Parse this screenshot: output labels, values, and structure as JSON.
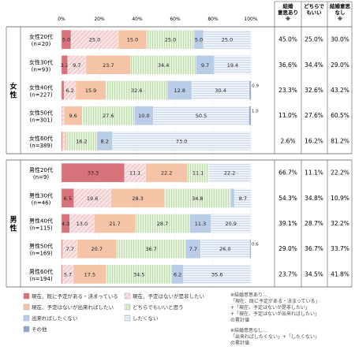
{
  "header": {
    "kekkon_ari": "結婚\n意思あり\n※",
    "dochira": "どちらで\nもいい",
    "kekkon_nashi": "結婚意思\nなし\n※"
  },
  "sections": [
    "女性",
    "男性"
  ],
  "legend": [
    {
      "label": "現在、既に予定がある・決まっている",
      "color": "#d7727a",
      "pattern": "solid"
    },
    {
      "label": "現在、予定はないが是非したい",
      "color": "#e8b4b8",
      "pattern": "hatch"
    },
    {
      "label": "現在、予定はないが出来ればしたい",
      "color": "#f5c4a6",
      "pattern": "solid"
    },
    {
      "label": "どちらでもいいと思う",
      "color": "#d6ecc8",
      "pattern": "vlines"
    },
    {
      "label": "出来ればしたくない",
      "color": "#b9cde6",
      "pattern": "solid"
    },
    {
      "label": "したくない",
      "color": "#e2e9f5",
      "pattern": "hlines"
    },
    {
      "label": "その他",
      "color": "#8fa7cf",
      "pattern": "solid"
    }
  ],
  "notes": [
    "※結婚意思あり…",
    "「現在、既に予定がある・決まっている」",
    "+「現在、予定はないが是非したい」",
    "+「現在、予定はないが出来ればしたい」",
    "の累計値",
    "※結婚意思なし…",
    "「出来ればしたくない」+「したくない」",
    "の累計値"
  ],
  "chart_data": {
    "type": "bar",
    "orientation": "horizontal-stacked-100",
    "x_ticks": [
      "0%",
      "20%",
      "40%",
      "60%",
      "80%",
      "100%"
    ],
    "xlim": [
      0,
      100
    ],
    "series_names": [
      "現在、既に予定がある・決まっている",
      "現在、予定はないが是非したい",
      "現在、予定はないが出来ればしたい",
      "どちらでもいいと思う",
      "出来ればしたくない",
      "したくない",
      "その他"
    ],
    "series_colors": [
      "#d7727a",
      "#e8b4b8",
      "#f5c4a6",
      "#d6ecc8",
      "#b9cde6",
      "#e2e9f5",
      "#8fa7cf"
    ],
    "rows": [
      {
        "label": "女性20代\n(n=20)",
        "section": "女性",
        "values": [
          5.0,
          25.0,
          15.0,
          25.0,
          5.0,
          25.0,
          0.0
        ],
        "labels": [
          "5.0",
          "25.0",
          "15.0",
          "25.0",
          "5.0",
          "25.0",
          ""
        ],
        "kekkon_ari": "45.0%",
        "dochira": "25.0%",
        "kekkon_nashi": "30.0%"
      },
      {
        "label": "女性30代\n(n=93)",
        "section": "女性",
        "values": [
          3.2,
          9.7,
          23.7,
          34.4,
          9.7,
          19.4,
          0.0
        ],
        "labels": [
          "3.2",
          "9.7",
          "23.7",
          "34.4",
          "9.7",
          "19.4",
          ""
        ],
        "kekkon_ari": "36.6%",
        "dochira": "34.4%",
        "kekkon_nashi": "29.0%"
      },
      {
        "label": "女性40代\n(n=227)",
        "section": "女性",
        "values": [
          1.3,
          6.2,
          15.9,
          32.6,
          12.8,
          30.4,
          0.9
        ],
        "labels": [
          "1.3",
          "6.2",
          "15.9",
          "32.6",
          "12.8",
          "30.4",
          "0.9"
        ],
        "kekkon_ari": "23.3%",
        "dochira": "32.6%",
        "kekkon_nashi": "43.2%"
      },
      {
        "label": "女性50代\n(n=301)",
        "section": "女性",
        "values": [
          0.3,
          1.0,
          9.6,
          27.6,
          10.0,
          50.5,
          1.0
        ],
        "labels": [
          "0.3",
          "1.0",
          "9.6",
          "27.6",
          "10.0",
          "50.5",
          "1.0"
        ],
        "kekkon_ari": "11.0%",
        "dochira": "27.6%",
        "kekkon_nashi": "60.5%"
      },
      {
        "label": "女性60代\n(n=389)",
        "section": "女性",
        "values": [
          0.5,
          1.0,
          1.0,
          16.2,
          8.2,
          73.0,
          0.0
        ],
        "labels": [
          "0.5",
          "1.0",
          "1.0",
          "16.2",
          "8.2",
          "73.0",
          ""
        ],
        "kekkon_ari": "2.6%",
        "dochira": "16.2%",
        "kekkon_nashi": "81.2%"
      },
      {
        "label": "男性20代\n(n=9)",
        "section": "男性",
        "values": [
          33.3,
          11.1,
          22.2,
          11.1,
          0.0,
          22.2,
          0.0
        ],
        "labels": [
          "33.3",
          "11.1",
          "22.2",
          "11.1",
          "",
          "22.2",
          ""
        ],
        "kekkon_ari": "66.7%",
        "dochira": "11.1%",
        "kekkon_nashi": "22.2%"
      },
      {
        "label": "男性30代\n(n=46)",
        "section": "男性",
        "values": [
          6.5,
          19.6,
          28.3,
          34.8,
          2.2,
          8.7,
          0.0
        ],
        "labels": [
          "6.5",
          "19.6",
          "28.3",
          "34.8",
          "2.2",
          "8.7",
          ""
        ],
        "kekkon_ari": "54.3%",
        "dochira": "34.8%",
        "kekkon_nashi": "10.9%"
      },
      {
        "label": "男性40代\n(n=115)",
        "section": "男性",
        "values": [
          4.3,
          13.0,
          21.7,
          28.7,
          11.3,
          20.9,
          0.0
        ],
        "labels": [
          "4.3",
          "13.0",
          "21.7",
          "28.7",
          "11.3",
          "20.9",
          ""
        ],
        "kekkon_ari": "39.1%",
        "dochira": "28.7%",
        "kekkon_nashi": "32.2%"
      },
      {
        "label": "男性50代\n(n=169)",
        "section": "男性",
        "values": [
          0.6,
          7.7,
          20.7,
          36.7,
          7.7,
          26.0,
          0.6
        ],
        "labels": [
          "0.6",
          "7.7",
          "20.7",
          "36.7",
          "7.7",
          "26.0",
          "0.6"
        ],
        "kekkon_ari": "29.0%",
        "dochira": "36.7%",
        "kekkon_nashi": "33.7%"
      },
      {
        "label": "男性60代\n(n=194)",
        "section": "男性",
        "values": [
          0.5,
          5.7,
          17.5,
          34.5,
          6.2,
          35.6,
          0.0
        ],
        "labels": [
          "0.5",
          "5.7",
          "17.5",
          "34.5",
          "6.2",
          "35.6",
          ""
        ],
        "kekkon_ari": "23.7%",
        "dochira": "34.5%",
        "kekkon_nashi": "41.8%"
      }
    ]
  }
}
